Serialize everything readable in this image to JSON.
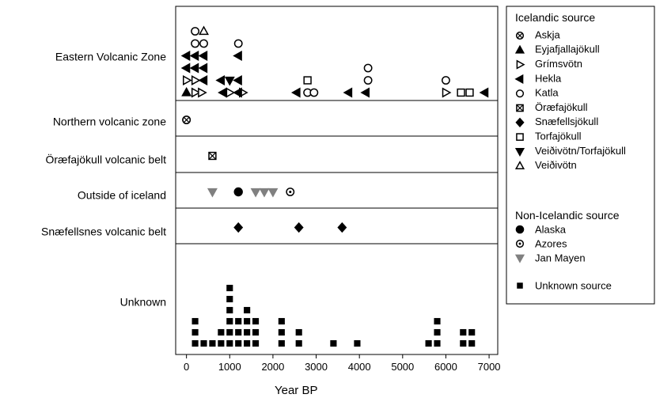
{
  "chart_data": {
    "type": "scatter",
    "xlabel": "Year BP",
    "xlim": [
      -250,
      7200
    ],
    "xticks": [
      0,
      1000,
      2000,
      3000,
      4000,
      5000,
      6000,
      7000
    ],
    "xtick_labels": [
      "0",
      "1000",
      "2000",
      "3000",
      "4000",
      "5000",
      "6000",
      "7000"
    ],
    "grid": false,
    "legend_placement": "right",
    "rows": [
      {
        "name": "Eastern Volcanic Zone",
        "levels": 6
      },
      {
        "name": "Northern volcanic zone",
        "levels": 1
      },
      {
        "name": "Öræfajökull volcanic belt",
        "levels": 1
      },
      {
        "name": "Outside of iceland",
        "levels": 1
      },
      {
        "name": "Snæfellsnes volcanic belt",
        "levels": 1
      },
      {
        "name": "Unknown",
        "levels": 7
      }
    ],
    "legend": {
      "icelandic_title": "Icelandic source",
      "non_icelandic_title": "Non-Icelandic source",
      "icelandic": [
        {
          "name": "Askja",
          "symbol": "circle-x",
          "color": "#000000"
        },
        {
          "name": "Eyjafjallajökull",
          "symbol": "triangle-up-filled",
          "color": "#000000"
        },
        {
          "name": "Grímsvötn",
          "symbol": "triangle-right-open",
          "color": "#000000"
        },
        {
          "name": "Hekla",
          "symbol": "triangle-left-filled",
          "color": "#000000"
        },
        {
          "name": "Katla",
          "symbol": "circle-open",
          "color": "#000000"
        },
        {
          "name": "Öræfajökull",
          "symbol": "square-x",
          "color": "#000000"
        },
        {
          "name": "Snæfellsjökull",
          "symbol": "diamond-filled",
          "color": "#000000"
        },
        {
          "name": "Torfajökull",
          "symbol": "square-open",
          "color": "#000000"
        },
        {
          "name": "Veiðivötn/Torfajökull",
          "symbol": "triangle-down-filled",
          "color": "#000000"
        },
        {
          "name": "Veiðivötn",
          "symbol": "triangle-up-open",
          "color": "#000000"
        }
      ],
      "non_icelandic": [
        {
          "name": "Alaska",
          "symbol": "circle-filled",
          "color": "#000000"
        },
        {
          "name": "Azores",
          "symbol": "circle-dot",
          "color": "#000000"
        },
        {
          "name": "Jan Mayen",
          "symbol": "triangle-down-filled",
          "color": "#808080"
        },
        {
          "name": "Unknown source",
          "symbol": "square-filled",
          "color": "#000000"
        }
      ]
    },
    "series": [
      {
        "source": "Askja",
        "row": "Northern volcanic zone",
        "points": [
          [
            0,
            0
          ]
        ]
      },
      {
        "source": "Eyjafjallajökull",
        "row": "Eastern Volcanic Zone",
        "points": [
          [
            0,
            0
          ]
        ]
      },
      {
        "source": "Grímsvötn",
        "row": "Eastern Volcanic Zone",
        "points": [
          [
            200,
            0
          ],
          [
            350,
            0
          ],
          [
            1000,
            0
          ],
          [
            1300,
            0
          ],
          [
            6000,
            0
          ],
          [
            0,
            1
          ],
          [
            200,
            1
          ]
        ]
      },
      {
        "source": "Hekla",
        "row": "Eastern Volcanic Zone",
        "points": [
          [
            850,
            0
          ],
          [
            1200,
            0
          ],
          [
            2550,
            0
          ],
          [
            3750,
            0
          ],
          [
            4150,
            0
          ],
          [
            6900,
            0
          ],
          [
            400,
            1
          ],
          [
            800,
            1
          ],
          [
            1200,
            1
          ],
          [
            0,
            2
          ],
          [
            200,
            2
          ],
          [
            400,
            2
          ],
          [
            0,
            3
          ],
          [
            200,
            3
          ],
          [
            400,
            3
          ],
          [
            1200,
            3
          ]
        ]
      },
      {
        "source": "Katla",
        "row": "Eastern Volcanic Zone",
        "points": [
          [
            2800,
            0
          ],
          [
            2950,
            0
          ],
          [
            4200,
            1
          ],
          [
            6000,
            1
          ],
          [
            4200,
            2
          ],
          [
            200,
            4
          ],
          [
            400,
            4
          ],
          [
            1200,
            4
          ],
          [
            200,
            5
          ]
        ]
      },
      {
        "source": "Torfajökull",
        "row": "Eastern Volcanic Zone",
        "points": [
          [
            6350,
            0
          ],
          [
            6550,
            0
          ],
          [
            2800,
            1
          ]
        ]
      },
      {
        "source": "Veiðivötn/Torfajökull",
        "row": "Eastern Volcanic Zone",
        "points": [
          [
            1000,
            1
          ]
        ]
      },
      {
        "source": "Veiðivötn",
        "row": "Eastern Volcanic Zone",
        "points": [
          [
            400,
            5
          ]
        ]
      },
      {
        "source": "Askja",
        "row": "Northern volcanic zone",
        "points": [
          [
            0,
            0
          ]
        ]
      },
      {
        "source": "Öræfajökull",
        "row": "Öræfajökull volcanic belt",
        "points": [
          [
            600,
            0
          ]
        ]
      },
      {
        "source": "Jan Mayen",
        "row": "Outside of iceland",
        "points": [
          [
            600,
            0
          ],
          [
            1600,
            0
          ],
          [
            1800,
            0
          ],
          [
            2000,
            0
          ]
        ]
      },
      {
        "source": "Alaska",
        "row": "Outside of iceland",
        "points": [
          [
            1200,
            0
          ]
        ]
      },
      {
        "source": "Azores",
        "row": "Outside of iceland",
        "points": [
          [
            2400,
            0
          ]
        ]
      },
      {
        "source": "Snæfellsjökull",
        "row": "Snæfellsnes volcanic belt",
        "points": [
          [
            1200,
            0
          ],
          [
            2600,
            0
          ],
          [
            3600,
            0
          ]
        ]
      },
      {
        "source": "Unknown source",
        "row": "Unknown",
        "points": [
          [
            200,
            0
          ],
          [
            400,
            0
          ],
          [
            600,
            0
          ],
          [
            800,
            0
          ],
          [
            1000,
            0
          ],
          [
            1200,
            0
          ],
          [
            1400,
            0
          ],
          [
            1600,
            0
          ],
          [
            2200,
            0
          ],
          [
            2600,
            0
          ],
          [
            3400,
            0
          ],
          [
            3950,
            0
          ],
          [
            5600,
            0
          ],
          [
            5800,
            0
          ],
          [
            6400,
            0
          ],
          [
            6600,
            0
          ],
          [
            200,
            1
          ],
          [
            800,
            1
          ],
          [
            1000,
            1
          ],
          [
            1200,
            1
          ],
          [
            1400,
            1
          ],
          [
            1600,
            1
          ],
          [
            2200,
            1
          ],
          [
            2600,
            1
          ],
          [
            5800,
            1
          ],
          [
            6400,
            1
          ],
          [
            6600,
            1
          ],
          [
            200,
            2
          ],
          [
            1000,
            2
          ],
          [
            1200,
            2
          ],
          [
            1400,
            2
          ],
          [
            1600,
            2
          ],
          [
            2200,
            2
          ],
          [
            5800,
            2
          ],
          [
            1000,
            3
          ],
          [
            1400,
            3
          ],
          [
            1000,
            4
          ],
          [
            1000,
            5
          ]
        ]
      }
    ]
  }
}
